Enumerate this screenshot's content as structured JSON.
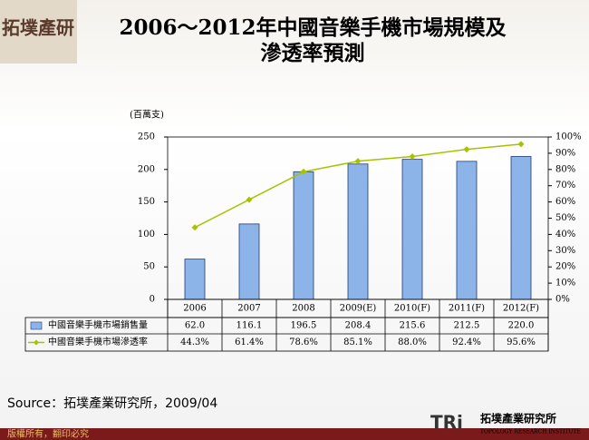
{
  "logo": "拓墣產研",
  "footer": {
    "copyright": "版權所有，翻印必究",
    "org_abbr": "TRi",
    "org_name": "拓墣產業研究所",
    "org_english": "TOPOLOGY RESEARCH INSTITUTE"
  },
  "chart_data": {
    "type": "bar_line",
    "title": [
      "2006～2012年中國音樂手機市場規模及",
      "滲透率預測"
    ],
    "y_unit_label": "(百萬支)",
    "source": "Source：拓墣產業研究所，2009/04",
    "categories": [
      "2006",
      "2007",
      "2008",
      "2009(E)",
      "2010(F)",
      "2011(F)",
      "2012(F)"
    ],
    "series": [
      {
        "name": "中國音樂手機市場銷售量",
        "type": "bar",
        "color": "#8db4e8",
        "values": [
          62.0,
          116.1,
          196.5,
          208.4,
          215.6,
          212.5,
          220.0
        ],
        "value_labels": [
          "62.0",
          "116.1",
          "196.5",
          "208.4",
          "215.6",
          "212.5",
          "220.0"
        ]
      },
      {
        "name": "中國音樂手機市場滲透率",
        "type": "line",
        "axis": "y2",
        "color": "#a8c200",
        "values": [
          44.3,
          61.4,
          78.6,
          85.1,
          88.0,
          92.4,
          95.6
        ],
        "value_labels": [
          "44.3%",
          "61.4%",
          "78.6%",
          "85.1%",
          "88.0%",
          "92.4%",
          "95.6%"
        ]
      }
    ],
    "ylim": [
      0,
      250
    ],
    "yticks": [
      0,
      50,
      100,
      150,
      200,
      250
    ],
    "y2lim": [
      0,
      100
    ],
    "y2ticks": [
      {
        "value": 0,
        "label": "0%"
      },
      {
        "value": 10,
        "label": "10%"
      },
      {
        "value": 20,
        "label": "20%"
      },
      {
        "value": 30,
        "label": "30%"
      },
      {
        "value": 40,
        "label": "40%"
      },
      {
        "value": 50,
        "label": "50%"
      },
      {
        "value": 60,
        "label": "60%"
      },
      {
        "value": 70,
        "label": "70%"
      },
      {
        "value": 80,
        "label": "80%"
      },
      {
        "value": 90,
        "label": "90%"
      },
      {
        "value": 100,
        "label": "100%"
      }
    ]
  }
}
